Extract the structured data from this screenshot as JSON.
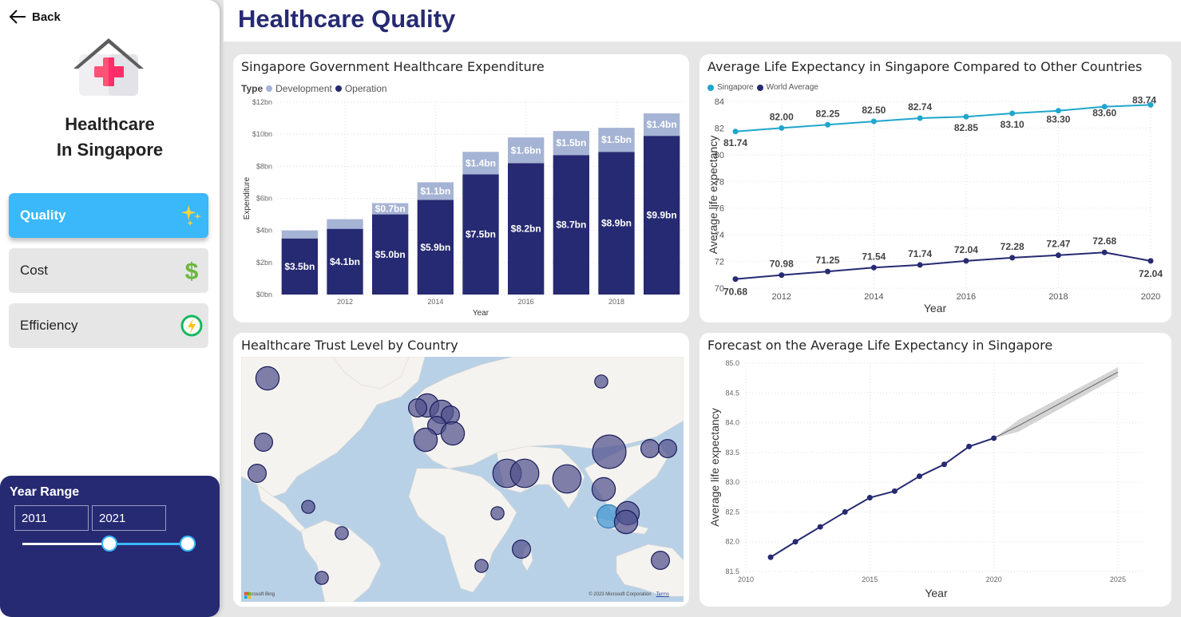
{
  "sidebar": {
    "back_label": "Back",
    "brand_line1": "Healthcare",
    "brand_line2": "In Singapore",
    "nav": [
      {
        "label": "Quality",
        "icon": "sparkles-icon",
        "active": true
      },
      {
        "label": "Cost",
        "icon": "dollar-icon",
        "active": false
      },
      {
        "label": "Efficiency",
        "icon": "energy-icon",
        "active": false
      }
    ],
    "year_range": {
      "title": "Year Range",
      "start": "2011",
      "end": "2021",
      "min_year": 2000,
      "max_year": 2022
    }
  },
  "header": {
    "title": "Healthcare Quality"
  },
  "colors": {
    "navy": "#262a72",
    "light_blue_bar": "#a5b3d4",
    "singapore_line": "#1fa6cc",
    "accent": "#3ab8fa"
  },
  "expenditure": {
    "title": "Singapore Government Healthcare Expenditure",
    "legend_title": "Type",
    "legend": [
      "Development",
      "Operation"
    ]
  },
  "life_expectancy": {
    "title": "Average Life Expectancy in Singapore Compared to Other Countries",
    "legend": [
      "Singapore",
      "World Average"
    ]
  },
  "trust_map": {
    "title": "Healthcare Trust Level by Country",
    "bing_label": "Microsoft Bing",
    "copyright": "© 2023 Microsoft Corporation",
    "terms": "Terms"
  },
  "forecast": {
    "title": "Forecast on the Average Life Expectancy in Singapore"
  },
  "chart_data": [
    {
      "type": "bar",
      "title": "Singapore Government Healthcare Expenditure",
      "xlabel": "Year",
      "ylabel": "Expenditure",
      "categories": [
        "2011",
        "2012",
        "2013",
        "2014",
        "2015",
        "2016",
        "2017",
        "2018",
        "2019"
      ],
      "x_tick_labels": [
        "2012",
        "2014",
        "2016",
        "2018"
      ],
      "y_tick_labels": [
        "$0bn",
        "$2bn",
        "$4bn",
        "$6bn",
        "$8bn",
        "$10bn",
        "$12bn"
      ],
      "ylim": [
        0,
        12
      ],
      "stacked": true,
      "series": [
        {
          "name": "Operation",
          "values": [
            3.5,
            4.1,
            5.0,
            5.9,
            7.5,
            8.2,
            8.7,
            8.9,
            9.9
          ],
          "labels": [
            "$3.5bn",
            "$4.1bn",
            "$5.0bn",
            "$5.9bn",
            "$7.5bn",
            "$8.2bn",
            "$8.7bn",
            "$8.9bn",
            "$9.9bn"
          ]
        },
        {
          "name": "Development",
          "values": [
            0.5,
            0.6,
            0.7,
            1.1,
            1.4,
            1.6,
            1.5,
            1.5,
            1.4
          ],
          "labels": [
            "",
            "",
            "$0.7bn",
            "$1.1bn",
            "$1.4bn",
            "$1.6bn",
            "$1.5bn",
            "$1.5bn",
            "$1.4bn"
          ]
        }
      ],
      "legend_position": "top-left",
      "grid": true
    },
    {
      "type": "line",
      "title": "Average Life Expectancy in Singapore Compared to Other Countries",
      "xlabel": "Year",
      "ylabel": "Average life expectancy",
      "x": [
        2011,
        2012,
        2013,
        2014,
        2015,
        2016,
        2017,
        2018,
        2019,
        2020
      ],
      "x_tick_labels": [
        "2012",
        "2014",
        "2016",
        "2018",
        "2020"
      ],
      "y_tick_labels": [
        "70",
        "72",
        "74",
        "76",
        "78",
        "80",
        "82",
        "84"
      ],
      "ylim": [
        70,
        84
      ],
      "series": [
        {
          "name": "Singapore",
          "values": [
            81.74,
            82.0,
            82.25,
            82.5,
            82.74,
            82.85,
            83.1,
            83.3,
            83.6,
            83.74
          ],
          "labels": [
            "81.74",
            "82.00",
            "82.25",
            "82.50",
            "82.74",
            "82.85",
            "83.10",
            "83.30",
            "83.60",
            "83.74"
          ]
        },
        {
          "name": "World Average",
          "values": [
            70.68,
            70.98,
            71.25,
            71.54,
            71.74,
            72.04,
            72.28,
            72.47,
            72.68,
            72.04
          ],
          "labels": [
            "70.68",
            "70.98",
            "71.25",
            "71.54",
            "71.74",
            "72.04",
            "72.28",
            "72.47",
            "72.68",
            "72.04"
          ]
        }
      ],
      "legend_position": "top-left",
      "grid": true
    },
    {
      "type": "line",
      "title": "Forecast on the Average Life Expectancy in Singapore",
      "xlabel": "Year",
      "ylabel": "Average life expectancy",
      "x": [
        2011,
        2012,
        2013,
        2014,
        2015,
        2016,
        2017,
        2018,
        2019,
        2020
      ],
      "values": [
        81.74,
        82.0,
        82.25,
        82.5,
        82.74,
        82.85,
        83.1,
        83.3,
        83.6,
        83.74
      ],
      "forecast": {
        "x": [
          2020,
          2021,
          2025
        ],
        "values": [
          83.74,
          83.95,
          84.85
        ],
        "upper": [
          83.74,
          84.05,
          84.93
        ],
        "lower": [
          83.74,
          83.85,
          84.77
        ]
      },
      "x_tick_labels": [
        "2010",
        "2015",
        "2020",
        "2025"
      ],
      "y_tick_labels": [
        "81.5",
        "82.0",
        "82.5",
        "83.0",
        "83.5",
        "84.0",
        "84.5",
        "85.0"
      ],
      "xlim": [
        2010,
        2026
      ],
      "ylim": [
        81.5,
        85.0
      ],
      "grid": true
    },
    {
      "type": "scatter",
      "title": "Healthcare Trust Level by Country",
      "subtype": "bubble-map",
      "points": [
        {
          "region": "Canada",
          "size": 3
        },
        {
          "region": "USA",
          "size": 2
        },
        {
          "region": "Mexico",
          "size": 2
        },
        {
          "region": "Colombia",
          "size": 1
        },
        {
          "region": "Brazil",
          "size": 1
        },
        {
          "region": "Argentina",
          "size": 1
        },
        {
          "region": "UK",
          "size": 3
        },
        {
          "region": "Ireland",
          "size": 2
        },
        {
          "region": "Netherlands",
          "size": 3
        },
        {
          "region": "Germany",
          "size": 2
        },
        {
          "region": "France",
          "size": 2
        },
        {
          "region": "Spain",
          "size": 3
        },
        {
          "region": "Italy",
          "size": 3
        },
        {
          "region": "Saudi Arabia",
          "size": 4
        },
        {
          "region": "UAE",
          "size": 4
        },
        {
          "region": "India",
          "size": 4
        },
        {
          "region": "China",
          "size": 5
        },
        {
          "region": "Russia",
          "size": 1
        },
        {
          "region": "South Korea",
          "size": 2
        },
        {
          "region": "Japan",
          "size": 2
        },
        {
          "region": "Nigeria",
          "size": 1
        },
        {
          "region": "Kenya",
          "size": 2
        },
        {
          "region": "South Africa",
          "size": 1
        },
        {
          "region": "Thailand",
          "size": 3
        },
        {
          "region": "Singapore",
          "size": 3,
          "highlight": true
        },
        {
          "region": "Malaysia",
          "size": 3
        },
        {
          "region": "Indonesia",
          "size": 3
        },
        {
          "region": "Australia",
          "size": 2
        }
      ]
    }
  ]
}
